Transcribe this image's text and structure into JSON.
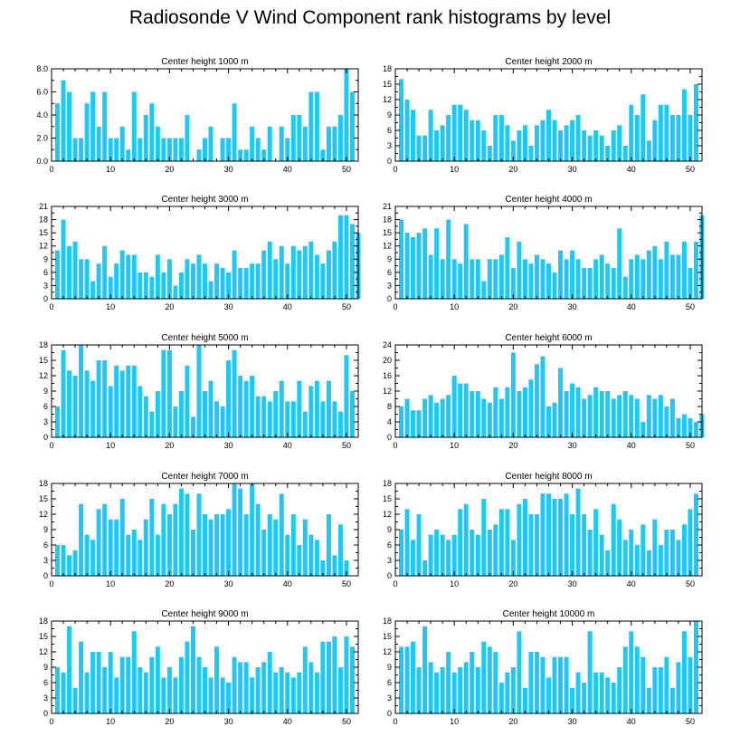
{
  "title": "Radiosonde V Wind Component rank histograms by level",
  "colors": {
    "bar": "#1ec8f5",
    "axis": "#000000",
    "background": "#ffffff"
  },
  "chart_data": [
    {
      "type": "bar",
      "title": "Center height 1000 m",
      "xlim": [
        0,
        52
      ],
      "ylim": [
        0,
        8
      ],
      "xticks": [
        0,
        10,
        20,
        30,
        40,
        50
      ],
      "yticks": [
        0,
        2,
        4,
        6,
        8
      ],
      "ytick_labels": [
        "0.0",
        "2.0",
        "4.0",
        "6.0",
        "8.0"
      ],
      "ylabel_side": "left",
      "values": [
        5,
        7,
        6,
        2,
        2,
        5,
        6,
        3,
        6,
        2,
        2,
        3,
        1,
        6,
        2,
        4,
        5,
        3,
        2,
        2,
        2,
        2,
        4,
        0,
        1,
        2,
        3,
        0,
        2,
        2,
        5,
        1,
        1,
        3,
        2,
        1,
        3,
        0,
        3,
        2,
        4,
        4,
        3,
        6,
        6,
        1,
        3,
        3,
        4,
        8,
        6
      ]
    },
    {
      "type": "bar",
      "title": "Center height 2000 m",
      "xlim": [
        0,
        52
      ],
      "ylim": [
        0,
        18
      ],
      "xticks": [
        0,
        10,
        20,
        30,
        40,
        50
      ],
      "yticks": [
        0,
        3,
        6,
        9,
        12,
        15,
        18
      ],
      "ytick_labels": [
        "0",
        "3",
        "6",
        "9",
        "12",
        "15",
        "18"
      ],
      "ylabel_side": "right",
      "values": [
        16,
        12,
        10,
        5,
        5,
        10,
        6,
        7,
        9,
        11,
        11,
        10,
        8,
        8,
        6,
        3,
        9,
        9,
        7,
        4,
        6,
        7,
        3,
        7,
        8,
        10,
        8,
        6,
        7,
        8,
        9,
        6,
        5,
        6,
        5,
        3,
        6,
        7,
        3,
        11,
        9,
        13,
        4,
        8,
        11,
        11,
        9,
        9,
        14,
        9,
        15
      ]
    },
    {
      "type": "bar",
      "title": "Center height 3000 m",
      "xlim": [
        0,
        52
      ],
      "ylim": [
        0,
        21
      ],
      "xticks": [
        0,
        10,
        20,
        30,
        40,
        50
      ],
      "yticks": [
        0,
        3,
        6,
        9,
        12,
        15,
        18,
        21
      ],
      "ytick_labels": [
        "0",
        "3",
        "6",
        "9",
        "12",
        "15",
        "18",
        "21"
      ],
      "ylabel_side": "left",
      "values": [
        11,
        18,
        12,
        13,
        9,
        9,
        4,
        8,
        12,
        5,
        8,
        11,
        10,
        10,
        6,
        6,
        5,
        10,
        6,
        9,
        3,
        6,
        9,
        8,
        10,
        8,
        4,
        8,
        7,
        6,
        11,
        7,
        7,
        8,
        8,
        11,
        13,
        9,
        12,
        8,
        12,
        11,
        12,
        13,
        10,
        8,
        11,
        13,
        19,
        19,
        17,
        15
      ]
    },
    {
      "type": "bar",
      "title": "Center height 4000 m",
      "xlim": [
        0,
        52
      ],
      "ylim": [
        0,
        21
      ],
      "xticks": [
        0,
        10,
        20,
        30,
        40,
        50
      ],
      "yticks": [
        0,
        3,
        6,
        9,
        12,
        15,
        18,
        21
      ],
      "ytick_labels": [
        "0",
        "3",
        "6",
        "9",
        "12",
        "15",
        "18",
        "21"
      ],
      "ylabel_side": "right",
      "values": [
        18,
        15,
        14,
        15,
        16,
        10,
        16,
        9,
        18,
        9,
        8,
        17,
        9,
        9,
        4,
        9,
        9,
        10,
        14,
        7,
        13,
        9,
        8,
        10,
        9,
        8,
        6,
        11,
        9,
        11,
        9,
        7,
        7,
        9,
        10,
        8,
        7,
        16,
        5,
        9,
        10,
        9,
        11,
        12,
        9,
        13,
        10,
        10,
        13,
        7,
        13,
        19
      ]
    },
    {
      "type": "bar",
      "title": "Center height 5000 m",
      "xlim": [
        0,
        52
      ],
      "ylim": [
        0,
        18
      ],
      "xticks": [
        0,
        10,
        20,
        30,
        40,
        50
      ],
      "yticks": [
        0,
        3,
        6,
        9,
        12,
        15,
        18
      ],
      "ytick_labels": [
        "0",
        "3",
        "6",
        "9",
        "12",
        "15",
        "18"
      ],
      "ylabel_side": "left",
      "values": [
        6,
        17,
        13,
        12,
        18,
        13,
        11,
        15,
        15,
        10,
        14,
        13,
        14,
        14,
        10,
        8,
        5,
        9,
        17,
        17,
        6,
        9,
        14,
        4,
        18,
        9,
        11,
        7,
        6,
        15,
        17,
        12,
        11,
        12,
        8,
        8,
        7,
        9,
        11,
        7,
        7,
        11,
        5,
        10,
        11,
        7,
        11,
        7,
        5,
        16,
        9
      ]
    },
    {
      "type": "bar",
      "title": "Center height 6000 m",
      "xlim": [
        0,
        52
      ],
      "ylim": [
        0,
        24
      ],
      "xticks": [
        0,
        10,
        20,
        30,
        40,
        50
      ],
      "yticks": [
        0,
        4,
        8,
        12,
        16,
        20,
        24
      ],
      "ytick_labels": [
        "0",
        "4",
        "8",
        "12",
        "16",
        "20",
        "24"
      ],
      "ylabel_side": "right",
      "values": [
        8,
        10,
        7,
        7,
        10,
        11,
        9,
        10,
        11,
        16,
        14,
        14,
        12,
        12,
        10,
        9,
        13,
        10,
        13,
        22,
        12,
        13,
        15,
        19,
        21,
        8,
        9,
        18,
        12,
        14,
        13,
        10,
        11,
        13,
        12,
        12,
        10,
        11,
        12,
        11,
        10,
        4,
        11,
        10,
        11,
        8,
        10,
        5,
        6,
        5,
        4,
        6
      ]
    },
    {
      "type": "bar",
      "title": "Center height 7000 m",
      "xlim": [
        0,
        52
      ],
      "ylim": [
        0,
        18
      ],
      "xticks": [
        0,
        10,
        20,
        30,
        40,
        50
      ],
      "yticks": [
        0,
        3,
        6,
        9,
        12,
        15,
        18
      ],
      "ytick_labels": [
        "0",
        "3",
        "6",
        "9",
        "12",
        "15",
        "18"
      ],
      "ylabel_side": "left",
      "values": [
        6,
        6,
        4,
        5,
        14,
        8,
        7,
        13,
        14,
        11,
        11,
        15,
        8,
        9,
        7,
        11,
        15,
        8,
        14,
        12,
        14,
        17,
        16,
        9,
        16,
        12,
        11,
        12,
        12,
        13,
        18,
        17,
        12,
        18,
        14,
        9,
        12,
        11,
        16,
        8,
        12,
        6,
        11,
        8,
        7,
        3,
        12,
        4,
        10,
        3
      ]
    },
    {
      "type": "bar",
      "title": "Center height 8000 m",
      "xlim": [
        0,
        52
      ],
      "ylim": [
        0,
        18
      ],
      "xticks": [
        0,
        10,
        20,
        30,
        40,
        50
      ],
      "yticks": [
        0,
        3,
        6,
        9,
        12,
        15,
        18
      ],
      "ytick_labels": [
        "0",
        "3",
        "6",
        "9",
        "12",
        "15",
        "18"
      ],
      "ylabel_side": "right",
      "values": [
        9,
        13,
        7,
        12,
        3,
        8,
        9,
        8,
        7,
        8,
        13,
        14,
        9,
        8,
        15,
        9,
        10,
        13,
        13,
        7,
        14,
        15,
        12,
        12,
        16,
        16,
        15,
        15,
        16,
        12,
        17,
        12,
        9,
        13,
        8,
        5,
        14,
        11,
        7,
        9,
        6,
        10,
        5,
        11,
        6,
        9,
        9,
        7,
        10,
        13,
        16
      ]
    },
    {
      "type": "bar",
      "title": "Center height 9000 m",
      "xlim": [
        0,
        52
      ],
      "ylim": [
        0,
        18
      ],
      "xticks": [
        0,
        10,
        20,
        30,
        40,
        50
      ],
      "yticks": [
        0,
        3,
        6,
        9,
        12,
        15,
        18
      ],
      "ytick_labels": [
        "0",
        "3",
        "6",
        "9",
        "12",
        "15",
        "18"
      ],
      "ylabel_side": "left",
      "values": [
        9,
        8,
        17,
        5,
        14,
        8,
        12,
        12,
        9,
        12,
        7,
        11,
        11,
        16,
        9,
        8,
        11,
        13,
        7,
        9,
        7,
        11,
        14,
        17,
        11,
        9,
        7,
        13,
        7,
        6,
        11,
        10,
        10,
        7,
        9,
        10,
        12,
        8,
        9,
        8,
        7,
        8,
        13,
        10,
        8,
        14,
        14,
        15,
        9,
        15,
        13
      ]
    },
    {
      "type": "bar",
      "title": "Center height 10000 m",
      "xlim": [
        0,
        52
      ],
      "ylim": [
        0,
        18
      ],
      "xticks": [
        0,
        10,
        20,
        30,
        40,
        50
      ],
      "yticks": [
        0,
        3,
        6,
        9,
        12,
        15,
        18
      ],
      "ytick_labels": [
        "0",
        "3",
        "6",
        "9",
        "12",
        "15",
        "18"
      ],
      "ylabel_side": "right",
      "values": [
        13,
        13,
        14,
        9,
        17,
        10,
        8,
        9,
        12,
        8,
        9,
        10,
        12,
        9,
        14,
        13,
        12,
        6,
        8,
        9,
        16,
        5,
        12,
        12,
        11,
        7,
        11,
        11,
        11,
        5,
        8,
        6,
        16,
        8,
        8,
        7,
        6,
        9,
        13,
        16,
        13,
        11,
        5,
        9,
        9,
        11,
        5,
        10,
        16,
        11,
        18
      ]
    }
  ]
}
